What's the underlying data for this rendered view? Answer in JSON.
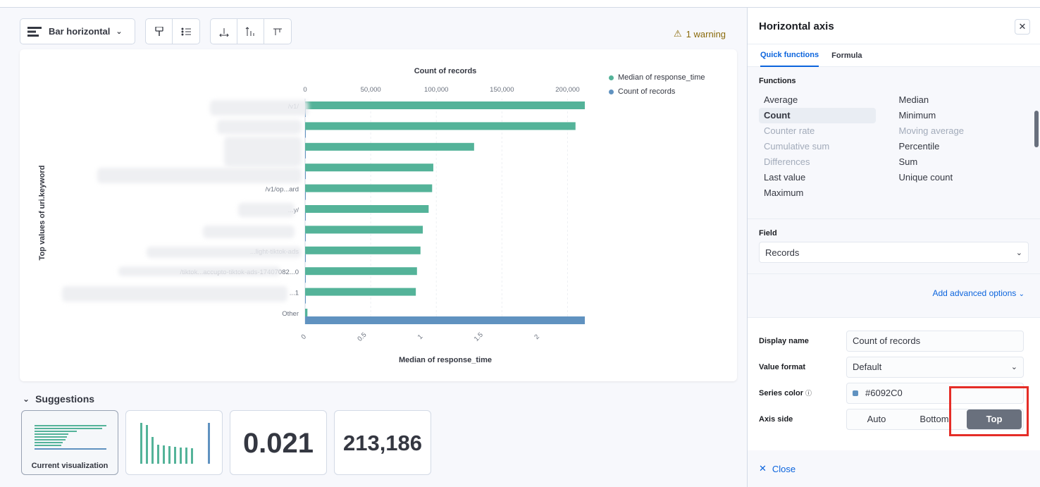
{
  "toolbar": {
    "chart_type_label": "Bar horizontal",
    "warning_label": "1 warning"
  },
  "chart_data": {
    "type": "bar",
    "orientation": "horizontal",
    "title": "Count of records",
    "xlabel": "Median of response_time",
    "ylabel": "Top values of uri.keyword",
    "top_axis_ticks": [
      "0",
      "50,000",
      "100,000",
      "150,000",
      "200,000"
    ],
    "top_axis_range": [
      0,
      213186
    ],
    "bottom_axis_ticks": [
      "0",
      "0.5",
      "1",
      "1.5",
      "2"
    ],
    "bottom_axis_range": [
      0,
      2.4
    ],
    "categories": [
      "/v1/",
      "",
      "",
      "",
      "/v1/op...ard",
      "...y/",
      "",
      "...light-tiktok-ads",
      "/tiktok...accupto-tiktok-ads-17407082...0",
      "...1",
      "Other"
    ],
    "series": [
      {
        "name": "Median of response_time",
        "color": "#54b399",
        "values": [
          2.4,
          2.32,
          1.45,
          1.1,
          1.09,
          1.06,
          1.01,
          0.99,
          0.96,
          0.95,
          0.02
        ]
      },
      {
        "name": "Count of records",
        "color": "#6092c0",
        "values": [
          120,
          90,
          70,
          60,
          55,
          50,
          45,
          40,
          35,
          30,
          213186
        ]
      }
    ],
    "legend_position": "top-right"
  },
  "suggestions": {
    "title": "Suggestions",
    "current_label": "Current visualization",
    "metric_value": "0.021",
    "count_value": "213,186"
  },
  "flyout": {
    "title": "Horizontal axis",
    "tabs": [
      "Quick functions",
      "Formula"
    ],
    "functions_label": "Functions",
    "functions_left": [
      {
        "label": "Average",
        "state": "normal"
      },
      {
        "label": "Count",
        "state": "selected"
      },
      {
        "label": "Counter rate",
        "state": "disabled"
      },
      {
        "label": "Cumulative sum",
        "state": "disabled"
      },
      {
        "label": "Differences",
        "state": "disabled"
      },
      {
        "label": "Last value",
        "state": "normal"
      },
      {
        "label": "Maximum",
        "state": "normal"
      }
    ],
    "functions_right": [
      {
        "label": "Median",
        "state": "normal"
      },
      {
        "label": "Minimum",
        "state": "normal"
      },
      {
        "label": "Moving average",
        "state": "disabled"
      },
      {
        "label": "Percentile",
        "state": "normal"
      },
      {
        "label": "Sum",
        "state": "normal"
      },
      {
        "label": "Unique count",
        "state": "normal"
      }
    ],
    "field_label": "Field",
    "field_value": "Records",
    "advanced_link": "Add advanced options",
    "display_name_label": "Display name",
    "display_name_value": "Count of records",
    "value_format_label": "Value format",
    "value_format_value": "Default",
    "series_color_label": "Series color",
    "series_color_value": "#6092C0",
    "series_color_hex": "#6092c0",
    "axis_side_label": "Axis side",
    "axis_side_options": [
      "Auto",
      "Bottom",
      "Top"
    ],
    "close_label": "Close"
  }
}
